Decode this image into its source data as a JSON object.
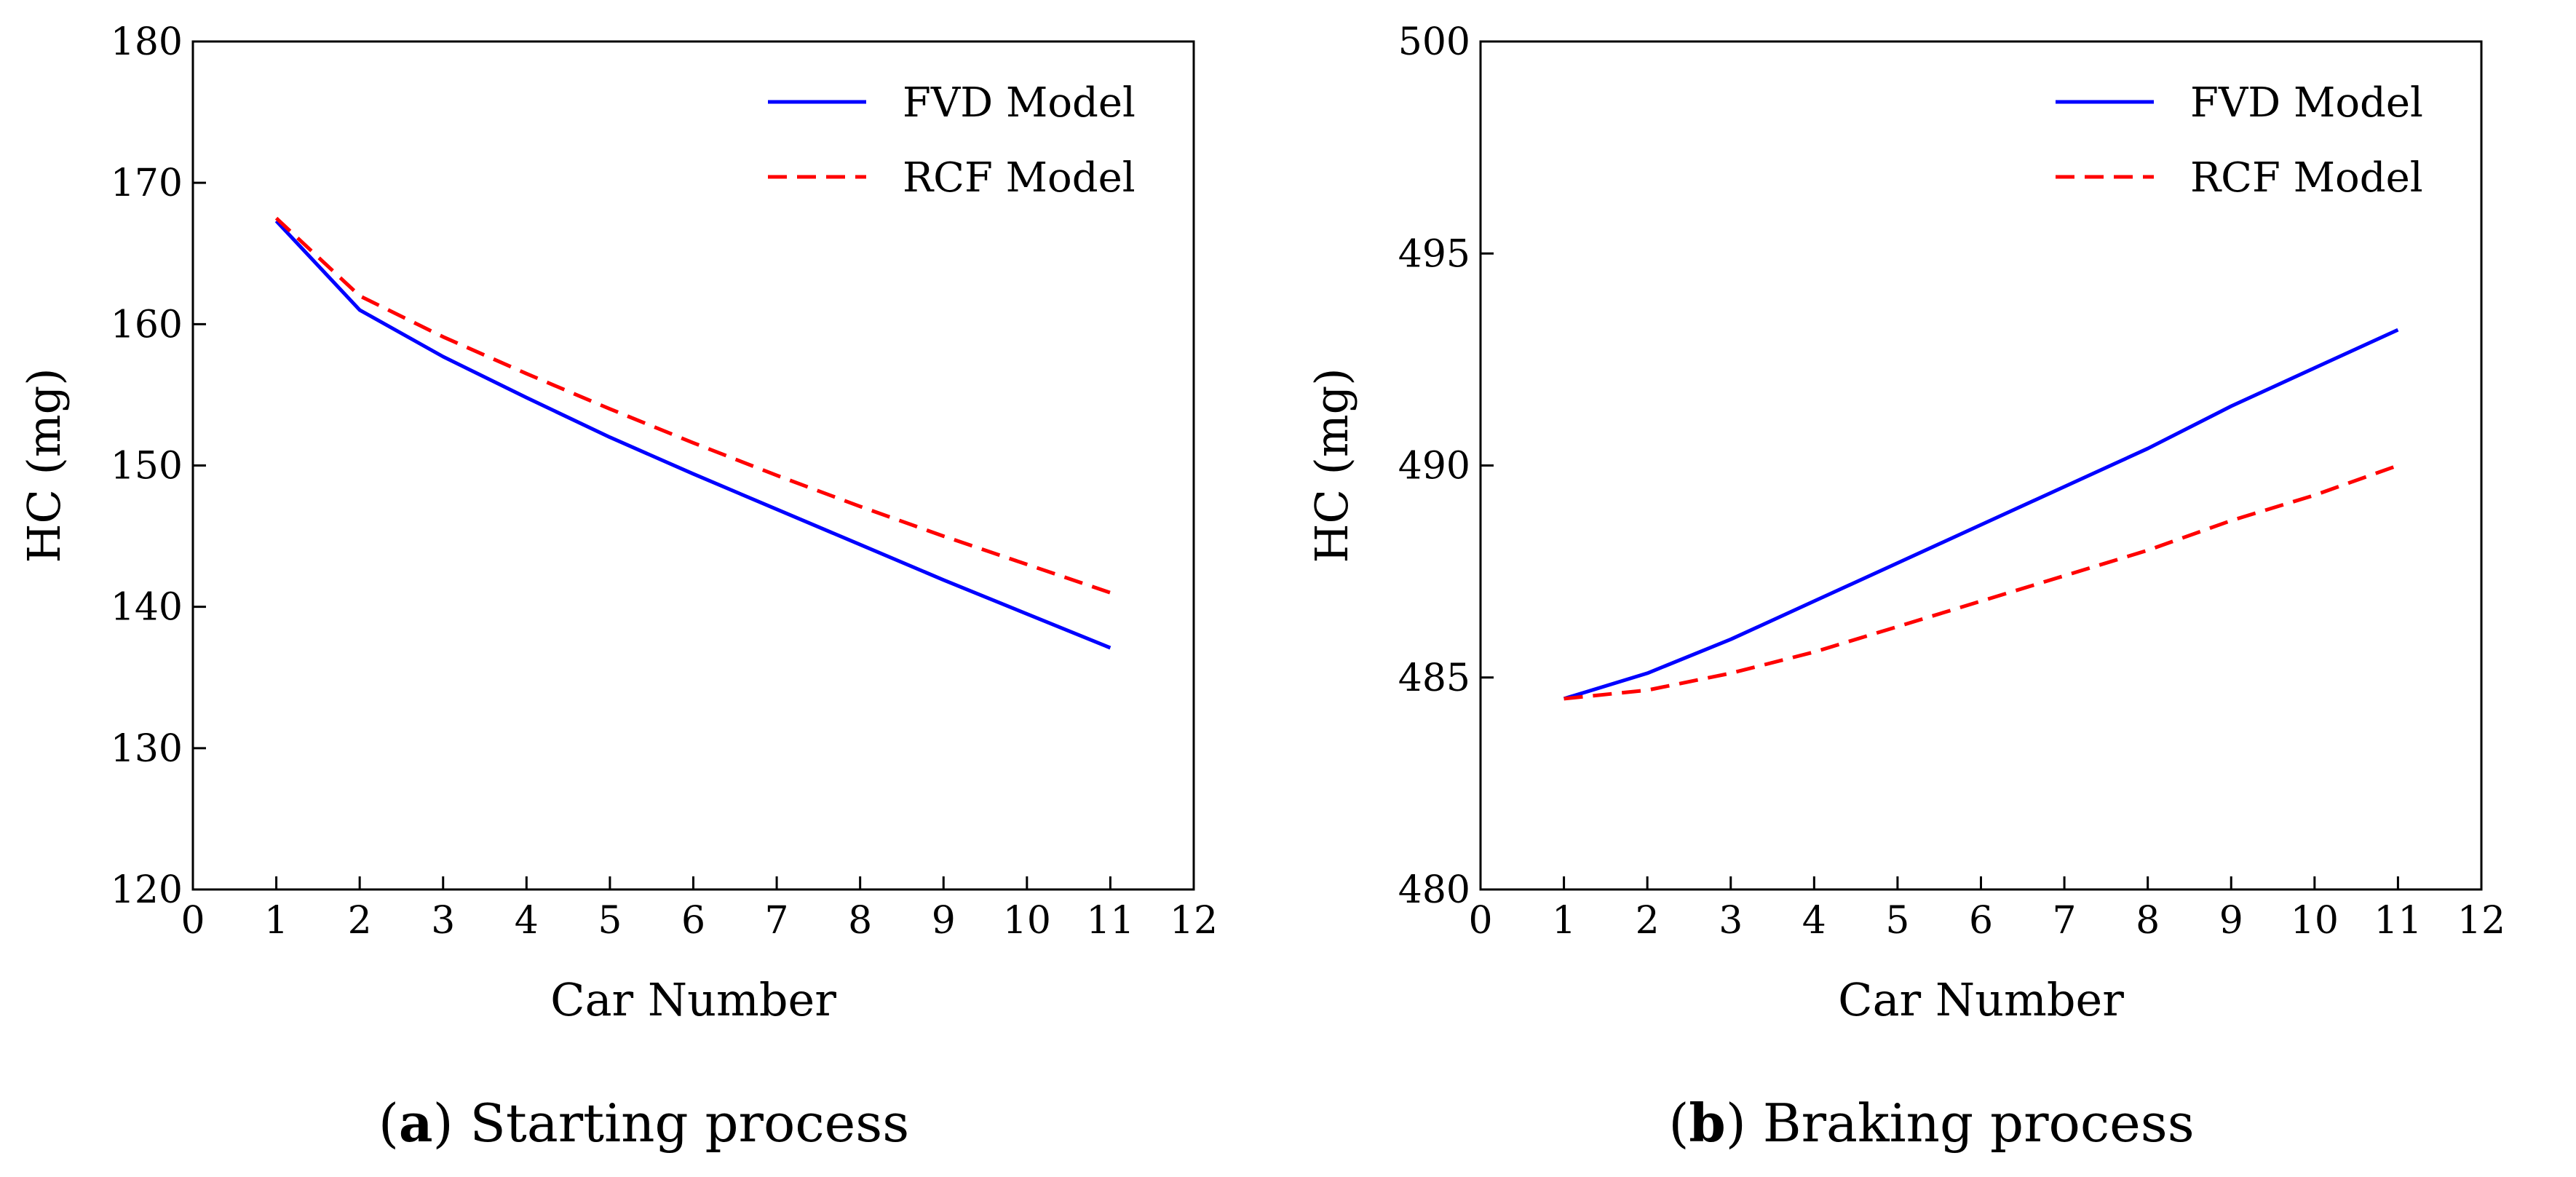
{
  "colors": {
    "fvd": "#0000ff",
    "rcf": "#ff0000",
    "axis": "#000000"
  },
  "chart_data": [
    {
      "type": "line",
      "xlabel": "Car Number",
      "ylabel": "HC (mg)",
      "xlim": [
        0,
        12
      ],
      "ylim": [
        120,
        180
      ],
      "xticks": [
        0,
        1,
        2,
        3,
        4,
        5,
        6,
        7,
        8,
        9,
        10,
        11,
        12
      ],
      "yticks": [
        120,
        130,
        140,
        150,
        160,
        170,
        180
      ],
      "grid": false,
      "legend_position": "top-right",
      "x": [
        1,
        2,
        3,
        4,
        5,
        6,
        7,
        8,
        9,
        10,
        11
      ],
      "series": [
        {
          "name": "FVD Model",
          "style": "solid",
          "values": [
            167.3,
            161.0,
            157.7,
            154.8,
            152.0,
            149.4,
            146.9,
            144.4,
            141.9,
            139.5,
            137.1
          ]
        },
        {
          "name": "RCF Model",
          "style": "dashed",
          "values": [
            167.5,
            162.0,
            159.1,
            156.5,
            154.0,
            151.6,
            149.3,
            147.1,
            145.0,
            143.0,
            141.0
          ]
        }
      ],
      "caption_letter": "a",
      "caption_paren_open": "(",
      "caption_paren_close": ")",
      "caption_text": " Starting process"
    },
    {
      "type": "line",
      "xlabel": "Car Number",
      "ylabel": "HC (mg)",
      "xlim": [
        0,
        12
      ],
      "ylim": [
        480,
        500
      ],
      "xticks": [
        0,
        1,
        2,
        3,
        4,
        5,
        6,
        7,
        8,
        9,
        10,
        11,
        12
      ],
      "yticks": [
        480,
        485,
        490,
        495,
        500
      ],
      "grid": false,
      "legend_position": "top-right",
      "x": [
        1,
        2,
        3,
        4,
        5,
        6,
        7,
        8,
        9,
        10,
        11
      ],
      "series": [
        {
          "name": "FVD Model",
          "style": "solid",
          "values": [
            484.5,
            485.1,
            485.9,
            486.8,
            487.7,
            488.6,
            489.5,
            490.4,
            491.4,
            492.3,
            493.2
          ]
        },
        {
          "name": "RCF Model",
          "style": "dashed",
          "values": [
            484.5,
            484.7,
            485.1,
            485.6,
            486.2,
            486.8,
            487.4,
            488.0,
            488.7,
            489.3,
            490.0
          ]
        }
      ],
      "caption_letter": "b",
      "caption_paren_open": "(",
      "caption_paren_close": ")",
      "caption_text": " Braking process"
    }
  ]
}
